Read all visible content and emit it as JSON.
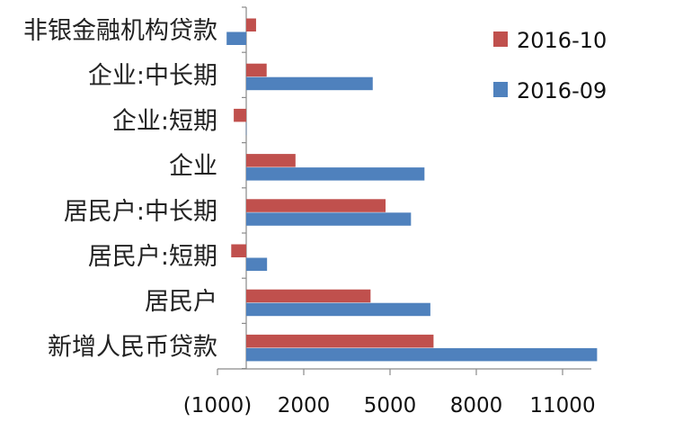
{
  "chart_data": {
    "type": "bar",
    "orientation": "horizontal",
    "categories": [
      "新增人民币贷款",
      "居民户",
      "居民户:短期",
      "居民户:中长期",
      "企业",
      "企业:短期",
      "企业:中长期",
      "非银金融机构贷款"
    ],
    "series": [
      {
        "name": "2016-10",
        "color": "#C0504D",
        "values": [
          6513,
          4323,
          -522,
          4845,
          1713,
          -434,
          710,
          342
        ]
      },
      {
        "name": "2016-09",
        "color": "#4F81BD",
        "values": [
          12200,
          6403,
          724,
          5729,
          6198,
          -7,
          4399,
          -682
        ]
      }
    ],
    "xlim": [
      -1000,
      12000
    ],
    "xticks": [
      -1000,
      2000,
      5000,
      8000,
      11000
    ],
    "xtick_labels": [
      "(1000)",
      "2000",
      "5000",
      "8000",
      "11000"
    ],
    "negative_tick_color": "#CC0000",
    "title": "",
    "xlabel": "",
    "ylabel": "",
    "grid": false,
    "legend_position": "top-right"
  }
}
